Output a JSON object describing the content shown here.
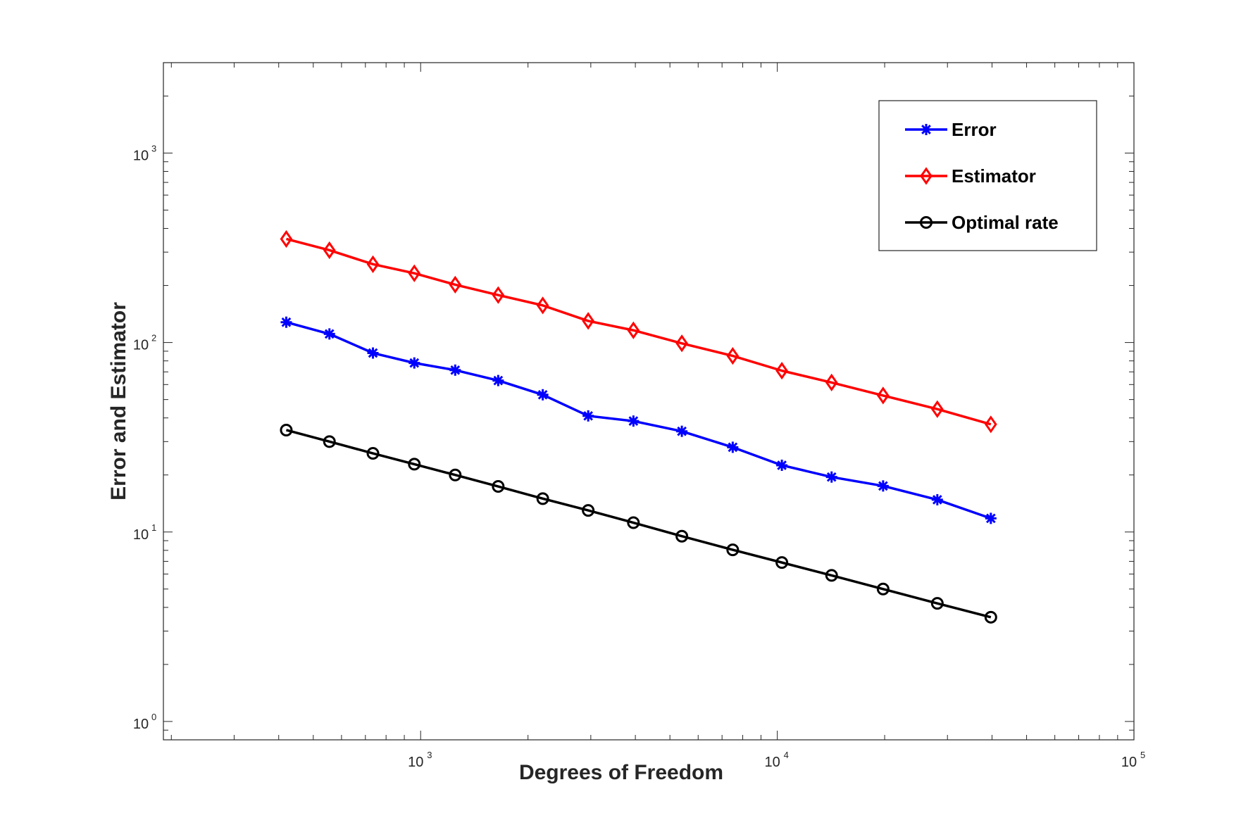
{
  "chart_data": {
    "type": "line",
    "xscale": "log",
    "yscale": "log",
    "xlabel": "Degrees of Freedom",
    "ylabel": "Error and Estimator",
    "xlim": [
      190,
      100000
    ],
    "ylim": [
      0.8,
      3000
    ],
    "x_ticks": [
      {
        "base": "10",
        "exp": "3",
        "value": 1000
      },
      {
        "base": "10",
        "exp": "4",
        "value": 10000
      },
      {
        "base": "10",
        "exp": "5",
        "value": 100000
      }
    ],
    "y_ticks": [
      {
        "base": "10",
        "exp": "0",
        "value": 1
      },
      {
        "base": "10",
        "exp": "1",
        "value": 10
      },
      {
        "base": "10",
        "exp": "2",
        "value": 100
      },
      {
        "base": "10",
        "exp": "3",
        "value": 1000
      }
    ],
    "grid": false,
    "legend_position": "top-right",
    "x": [
      420,
      555,
      735,
      960,
      1250,
      1650,
      2200,
      2950,
      3950,
      5400,
      7500,
      10300,
      14200,
      19800,
      28100,
      39700
    ],
    "series": [
      {
        "name": "Error",
        "color": "#0000ff",
        "marker": "asterisk",
        "values": [
          128,
          111,
          88,
          78,
          71.5,
          63,
          53,
          41,
          38.5,
          34,
          28,
          22.5,
          19.5,
          17.5,
          14.8,
          11.8
        ]
      },
      {
        "name": "Estimator",
        "color": "#ff0000",
        "marker": "diamond",
        "values": [
          352,
          307,
          259,
          232,
          202,
          178,
          157,
          130,
          116,
          99,
          85,
          71,
          61.5,
          52.5,
          44.5,
          37
        ]
      },
      {
        "name": "Optimal rate",
        "color": "#000000",
        "marker": "circle",
        "values": [
          34.5,
          30,
          26,
          22.8,
          20,
          17.4,
          15,
          13,
          11.2,
          9.5,
          8.05,
          6.9,
          5.9,
          5.0,
          4.2,
          3.55
        ]
      }
    ]
  }
}
